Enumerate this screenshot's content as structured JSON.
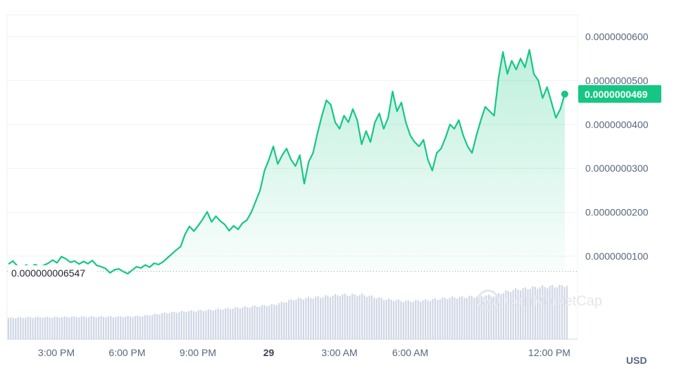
{
  "chart_data": {
    "type": "area",
    "currency": "USD",
    "watermark": "CoinMarketCap",
    "y_ticks": [
      "0.0000000600",
      "0.0000000500",
      "0.0000000400",
      "0.0000000300",
      "0.0000000200",
      "0.0000000100"
    ],
    "y_tick_values": [
      60,
      50,
      40,
      30,
      20,
      10
    ],
    "x_ticks": [
      {
        "label": "3:00 PM",
        "t": 3,
        "bold": false
      },
      {
        "label": "6:00 PM",
        "t": 6,
        "bold": false
      },
      {
        "label": "9:00 PM",
        "t": 9,
        "bold": false
      },
      {
        "label": "29",
        "t": 12,
        "bold": true
      },
      {
        "label": "3:00 AM",
        "t": 15,
        "bold": false
      },
      {
        "label": "6:00 AM",
        "t": 18,
        "bold": false
      },
      {
        "label": "12:00 PM",
        "t": 24,
        "bold": false
      }
    ],
    "open_price": {
      "label": "0.000000006547",
      "value": 6.547
    },
    "current_price": {
      "label": "0.0000000469",
      "value": 46.9
    },
    "y_unit": "1e-9 USD",
    "ylim": [
      0,
      68
    ],
    "xlim": [
      0,
      25.3
    ],
    "colors": {
      "line": "#16c784",
      "area_top": "#16c784",
      "volume": "#cfd6e4",
      "text": "#58667e"
    },
    "price_series": [
      [
        0.0,
        8.2
      ],
      [
        0.2,
        8.9
      ],
      [
        0.4,
        7.8
      ],
      [
        0.6,
        7.2
      ],
      [
        0.8,
        8.0
      ],
      [
        1.0,
        7.4
      ],
      [
        1.2,
        8.1
      ],
      [
        1.4,
        7.6
      ],
      [
        1.6,
        7.9
      ],
      [
        1.8,
        8.4
      ],
      [
        2.0,
        9.1
      ],
      [
        2.2,
        8.5
      ],
      [
        2.4,
        9.9
      ],
      [
        2.6,
        9.4
      ],
      [
        2.8,
        8.6
      ],
      [
        3.0,
        8.9
      ],
      [
        3.2,
        8.2
      ],
      [
        3.4,
        8.8
      ],
      [
        3.6,
        8.3
      ],
      [
        3.8,
        9.0
      ],
      [
        4.0,
        7.9
      ],
      [
        4.2,
        7.6
      ],
      [
        4.4,
        7.2
      ],
      [
        4.6,
        6.2
      ],
      [
        4.8,
        6.9
      ],
      [
        5.0,
        7.1
      ],
      [
        5.2,
        6.5
      ],
      [
        5.4,
        6.0
      ],
      [
        5.6,
        6.8
      ],
      [
        5.8,
        7.6
      ],
      [
        6.0,
        7.3
      ],
      [
        6.2,
        8.0
      ],
      [
        6.4,
        7.5
      ],
      [
        6.6,
        8.4
      ],
      [
        6.8,
        8.1
      ],
      [
        7.0,
        8.7
      ],
      [
        7.2,
        9.6
      ],
      [
        7.4,
        10.5
      ],
      [
        7.6,
        11.4
      ],
      [
        7.8,
        12.2
      ],
      [
        8.0,
        15.0
      ],
      [
        8.2,
        16.8
      ],
      [
        8.4,
        15.7
      ],
      [
        8.6,
        17.0
      ],
      [
        8.8,
        18.4
      ],
      [
        9.0,
        20.1
      ],
      [
        9.2,
        17.8
      ],
      [
        9.4,
        19.1
      ],
      [
        9.6,
        18.0
      ],
      [
        9.8,
        17.2
      ],
      [
        10.0,
        15.8
      ],
      [
        10.2,
        16.9
      ],
      [
        10.4,
        16.1
      ],
      [
        10.6,
        17.5
      ],
      [
        10.8,
        18.2
      ],
      [
        11.0,
        20.0
      ],
      [
        11.2,
        22.5
      ],
      [
        11.4,
        25.0
      ],
      [
        11.6,
        29.5
      ],
      [
        11.8,
        32.0
      ],
      [
        12.0,
        35.0
      ],
      [
        12.2,
        31.0
      ],
      [
        12.4,
        33.0
      ],
      [
        12.6,
        34.5
      ],
      [
        12.8,
        32.0
      ],
      [
        13.0,
        30.5
      ],
      [
        13.2,
        33.0
      ],
      [
        13.4,
        26.5
      ],
      [
        13.6,
        31.5
      ],
      [
        13.8,
        33.5
      ],
      [
        14.0,
        38.0
      ],
      [
        14.2,
        42.0
      ],
      [
        14.4,
        45.5
      ],
      [
        14.6,
        44.5
      ],
      [
        14.8,
        40.5
      ],
      [
        15.0,
        39.0
      ],
      [
        15.2,
        42.0
      ],
      [
        15.4,
        40.5
      ],
      [
        15.6,
        43.5
      ],
      [
        15.8,
        41.0
      ],
      [
        16.0,
        35.5
      ],
      [
        16.2,
        38.5
      ],
      [
        16.4,
        36.0
      ],
      [
        16.6,
        40.5
      ],
      [
        16.8,
        42.5
      ],
      [
        17.0,
        39.0
      ],
      [
        17.2,
        41.5
      ],
      [
        17.4,
        47.5
      ],
      [
        17.6,
        43.0
      ],
      [
        17.8,
        45.0
      ],
      [
        18.0,
        40.5
      ],
      [
        18.2,
        37.5
      ],
      [
        18.4,
        36.0
      ],
      [
        18.6,
        35.0
      ],
      [
        18.8,
        36.5
      ],
      [
        19.0,
        32.0
      ],
      [
        19.2,
        29.5
      ],
      [
        19.4,
        33.5
      ],
      [
        19.6,
        34.5
      ],
      [
        19.8,
        37.0
      ],
      [
        20.0,
        40.0
      ],
      [
        20.2,
        39.0
      ],
      [
        20.4,
        41.0
      ],
      [
        20.6,
        37.5
      ],
      [
        20.8,
        35.0
      ],
      [
        21.0,
        33.5
      ],
      [
        21.2,
        37.5
      ],
      [
        21.4,
        41.0
      ],
      [
        21.6,
        44.0
      ],
      [
        21.8,
        43.0
      ],
      [
        22.0,
        42.0
      ],
      [
        22.2,
        50.5
      ],
      [
        22.4,
        56.5
      ],
      [
        22.6,
        51.5
      ],
      [
        22.8,
        54.5
      ],
      [
        23.0,
        52.5
      ],
      [
        23.2,
        55.0
      ],
      [
        23.4,
        53.0
      ],
      [
        23.6,
        57.0
      ],
      [
        23.8,
        51.5
      ],
      [
        24.0,
        50.0
      ],
      [
        24.2,
        46.0
      ],
      [
        24.4,
        48.5
      ],
      [
        24.6,
        45.0
      ],
      [
        24.8,
        41.5
      ],
      [
        25.0,
        43.5
      ],
      [
        25.2,
        46.9
      ]
    ],
    "volume_series": [
      [
        0.0,
        0.36
      ],
      [
        1.0,
        0.37
      ],
      [
        2.0,
        0.37
      ],
      [
        3.0,
        0.38
      ],
      [
        4.0,
        0.38
      ],
      [
        5.0,
        0.38
      ],
      [
        6.0,
        0.39
      ],
      [
        6.5,
        0.41
      ],
      [
        7.0,
        0.44
      ],
      [
        8.0,
        0.47
      ],
      [
        9.0,
        0.49
      ],
      [
        10.0,
        0.52
      ],
      [
        11.0,
        0.55
      ],
      [
        12.0,
        0.58
      ],
      [
        12.5,
        0.63
      ],
      [
        13.0,
        0.68
      ],
      [
        14.0,
        0.71
      ],
      [
        15.0,
        0.75
      ],
      [
        16.0,
        0.75
      ],
      [
        16.5,
        0.72
      ],
      [
        17.0,
        0.68
      ],
      [
        17.5,
        0.66
      ],
      [
        18.0,
        0.64
      ],
      [
        19.0,
        0.66
      ],
      [
        20.0,
        0.7
      ],
      [
        21.0,
        0.72
      ],
      [
        22.0,
        0.74
      ],
      [
        22.5,
        0.8
      ],
      [
        23.0,
        0.84
      ],
      [
        24.0,
        0.88
      ],
      [
        25.0,
        0.9
      ],
      [
        25.3,
        0.91
      ]
    ]
  }
}
